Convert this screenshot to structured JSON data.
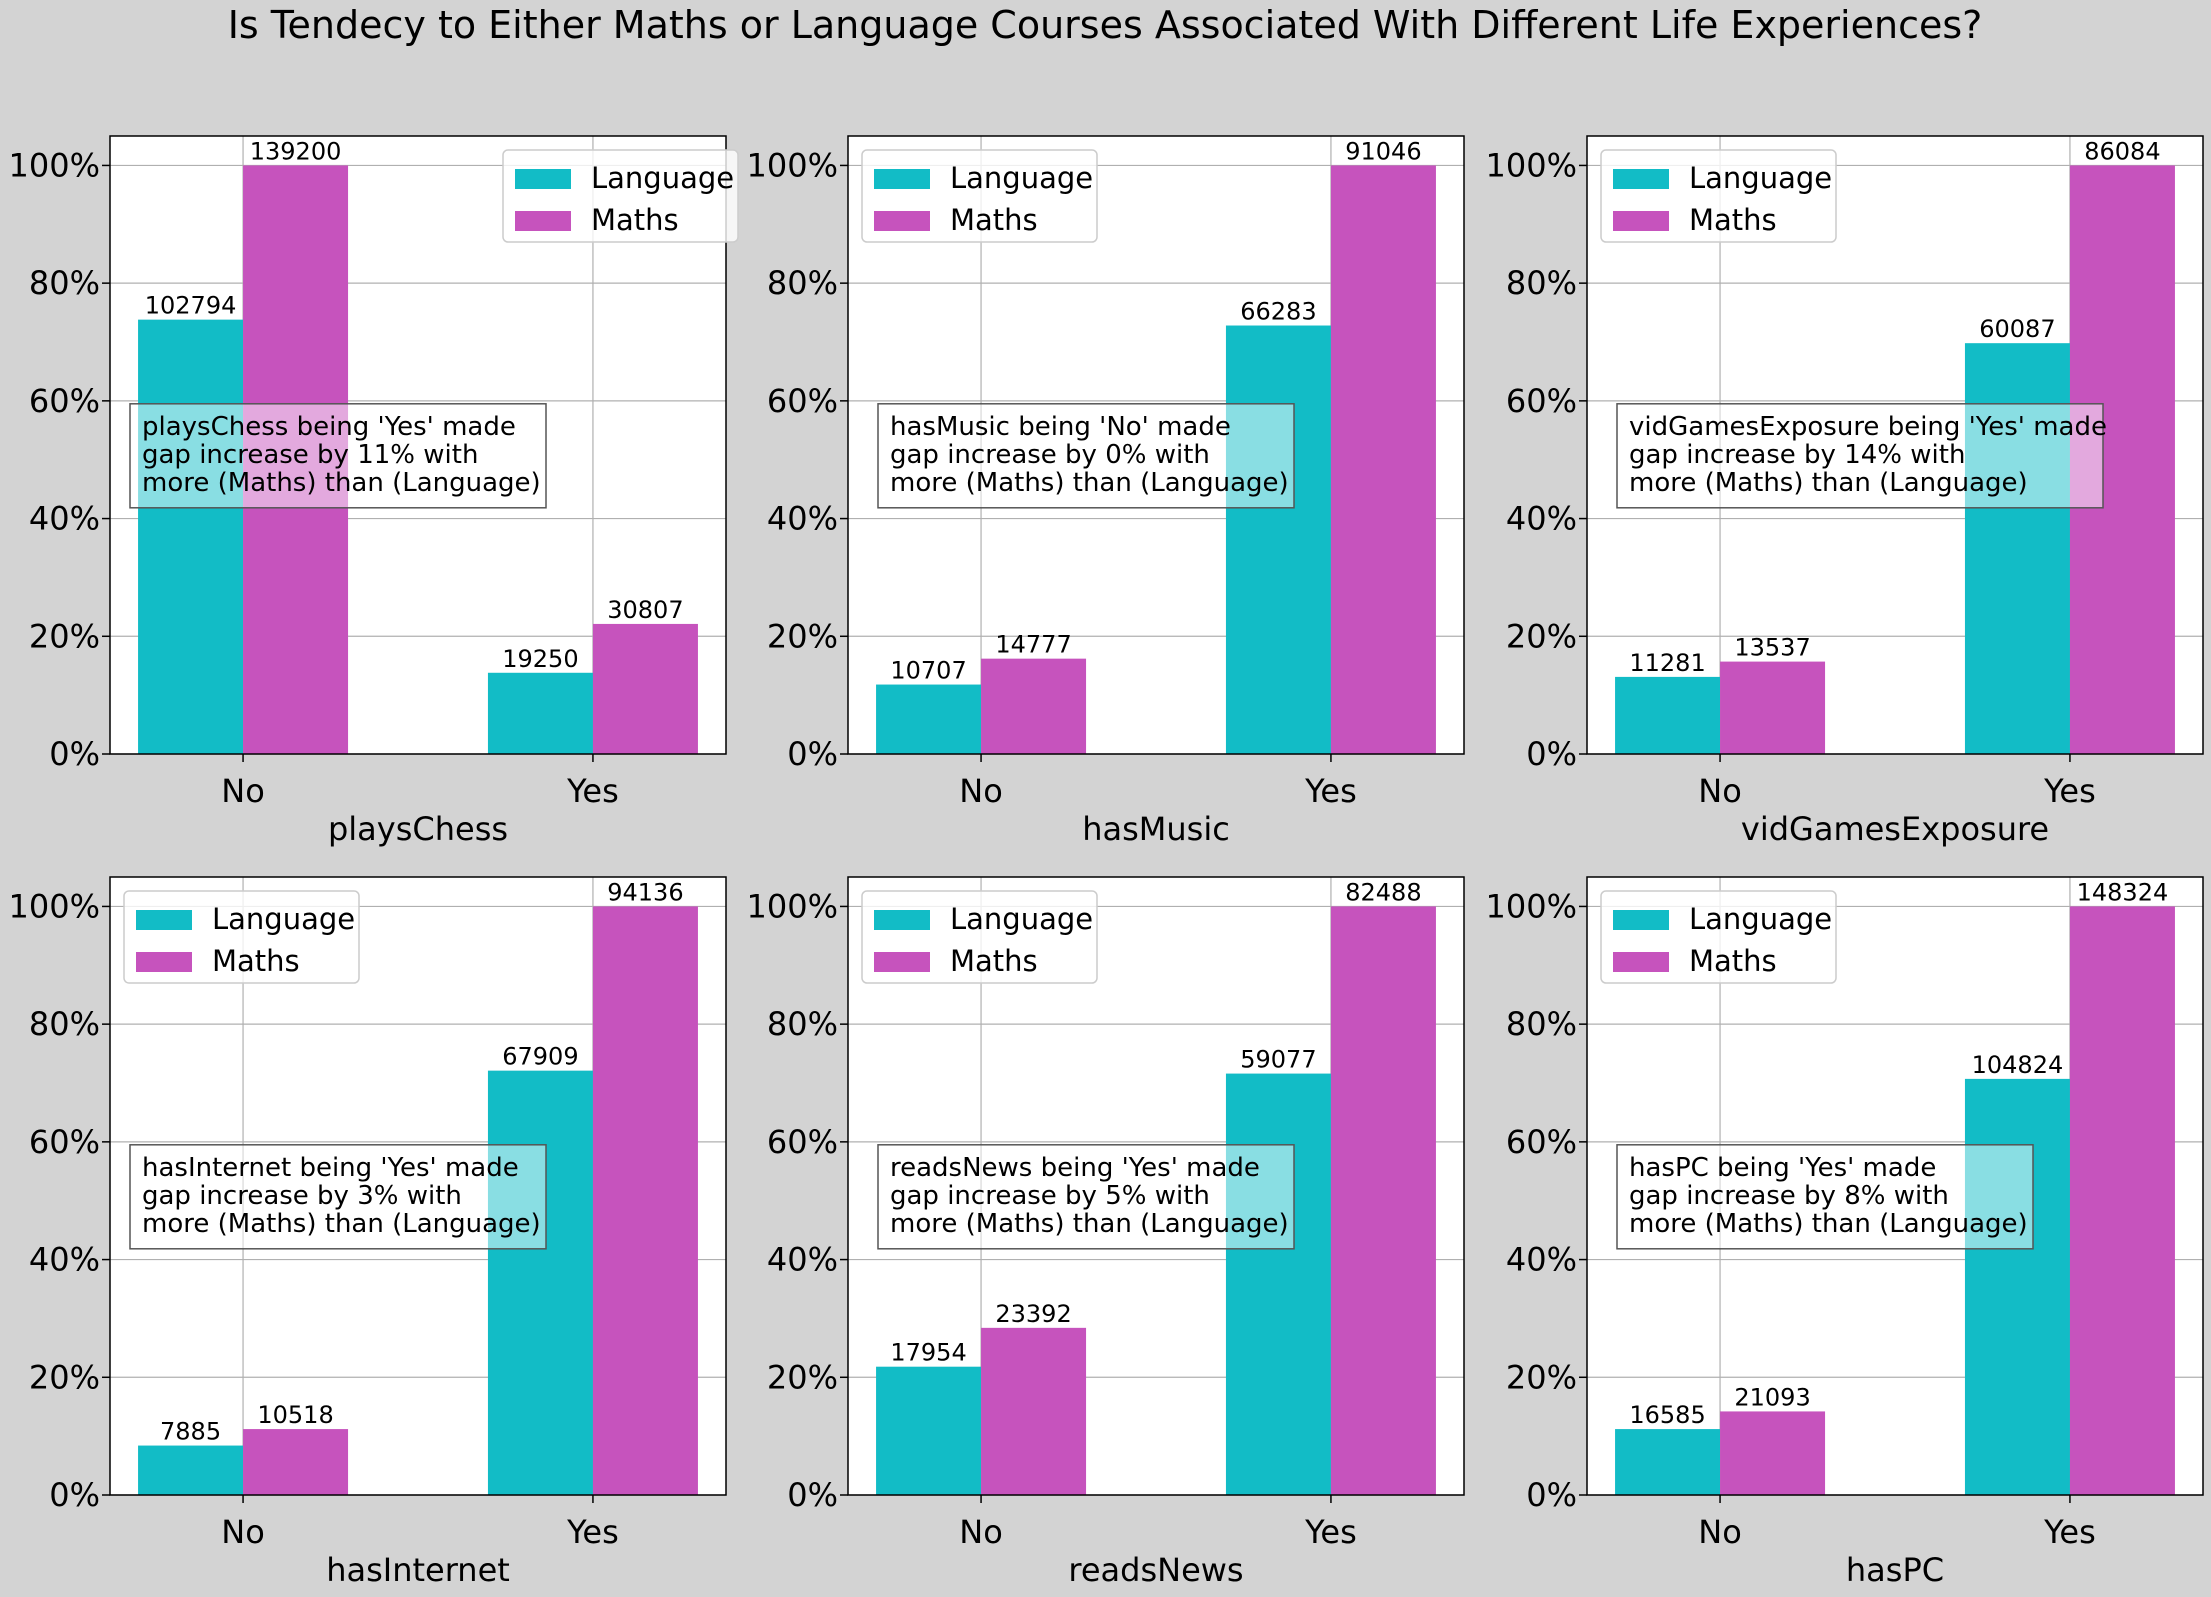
{
  "title": "Is Tendecy to Either Maths or Language Courses Associated With Different Life Experiences?",
  "colors": {
    "background": "#d3d3d3",
    "language": "#12bcc6",
    "maths": "#c653bd",
    "grid": "#b0b0b0"
  },
  "chart_data": [
    {
      "type": "bar",
      "xlabel": "playsChess",
      "categories": [
        "No",
        "Yes"
      ],
      "ylim": [
        0,
        105
      ],
      "yticks": [
        "0%",
        "20%",
        "40%",
        "60%",
        "80%",
        "100%"
      ],
      "grid": true,
      "legend": "top-right",
      "series": [
        {
          "name": "Language",
          "values": [
            73.8,
            13.8
          ],
          "labels": [
            "102794",
            "19250"
          ]
        },
        {
          "name": "Maths",
          "values": [
            100,
            22.1
          ],
          "labels": [
            "139200",
            "30807"
          ]
        }
      ],
      "annotation": [
        "playsChess being 'Yes' made",
        "gap increase by 11% with",
        "more (Maths) than (Language)"
      ]
    },
    {
      "type": "bar",
      "xlabel": "hasMusic",
      "categories": [
        "No",
        "Yes"
      ],
      "ylim": [
        0,
        105
      ],
      "yticks": [
        "0%",
        "20%",
        "40%",
        "60%",
        "80%",
        "100%"
      ],
      "grid": true,
      "legend": "top-left",
      "series": [
        {
          "name": "Language",
          "values": [
            11.8,
            72.8
          ],
          "labels": [
            "10707",
            "66283"
          ]
        },
        {
          "name": "Maths",
          "values": [
            16.2,
            100
          ],
          "labels": [
            "14777",
            "91046"
          ]
        }
      ],
      "annotation": [
        "hasMusic being 'No' made",
        "gap increase by 0% with",
        "more (Maths) than (Language)"
      ]
    },
    {
      "type": "bar",
      "xlabel": "vidGamesExposure",
      "categories": [
        "No",
        "Yes"
      ],
      "ylim": [
        0,
        105
      ],
      "yticks": [
        "0%",
        "20%",
        "40%",
        "60%",
        "80%",
        "100%"
      ],
      "grid": true,
      "legend": "top-left",
      "series": [
        {
          "name": "Language",
          "values": [
            13.1,
            69.8
          ],
          "labels": [
            "11281",
            "60087"
          ]
        },
        {
          "name": "Maths",
          "values": [
            15.7,
            100
          ],
          "labels": [
            "13537",
            "86084"
          ]
        }
      ],
      "annotation": [
        "vidGamesExposure being 'Yes' made",
        "gap increase by 14% with",
        "more (Maths) than (Language)"
      ]
    },
    {
      "type": "bar",
      "xlabel": "hasInternet",
      "categories": [
        "No",
        "Yes"
      ],
      "ylim": [
        0,
        105
      ],
      "yticks": [
        "0%",
        "20%",
        "40%",
        "60%",
        "80%",
        "100%"
      ],
      "grid": true,
      "legend": "top-left",
      "series": [
        {
          "name": "Language",
          "values": [
            8.4,
            72.1
          ],
          "labels": [
            "7885",
            "67909"
          ]
        },
        {
          "name": "Maths",
          "values": [
            11.2,
            100
          ],
          "labels": [
            "10518",
            "94136"
          ]
        }
      ],
      "annotation": [
        "hasInternet being 'Yes' made",
        "gap increase by 3% with",
        "more (Maths) than (Language)"
      ]
    },
    {
      "type": "bar",
      "xlabel": "readsNews",
      "categories": [
        "No",
        "Yes"
      ],
      "ylim": [
        0,
        105
      ],
      "yticks": [
        "0%",
        "20%",
        "40%",
        "60%",
        "80%",
        "100%"
      ],
      "grid": true,
      "legend": "top-left",
      "series": [
        {
          "name": "Language",
          "values": [
            21.8,
            71.6
          ],
          "labels": [
            "17954",
            "59077"
          ]
        },
        {
          "name": "Maths",
          "values": [
            28.4,
            100
          ],
          "labels": [
            "23392",
            "82488"
          ]
        }
      ],
      "annotation": [
        "readsNews being 'Yes' made",
        "gap increase by 5% with",
        "more (Maths) than (Language)"
      ]
    },
    {
      "type": "bar",
      "xlabel": "hasPC",
      "categories": [
        "No",
        "Yes"
      ],
      "ylim": [
        0,
        105
      ],
      "yticks": [
        "0%",
        "20%",
        "40%",
        "60%",
        "80%",
        "100%"
      ],
      "grid": true,
      "legend": "top-left",
      "series": [
        {
          "name": "Language",
          "values": [
            11.2,
            70.7
          ],
          "labels": [
            "16585",
            "104824"
          ]
        },
        {
          "name": "Maths",
          "values": [
            14.2,
            100
          ],
          "labels": [
            "21093",
            "148324"
          ]
        }
      ],
      "annotation": [
        "hasPC being 'Yes' made",
        "gap increase by 8% with",
        "more (Maths) than (Language)"
      ]
    }
  ]
}
